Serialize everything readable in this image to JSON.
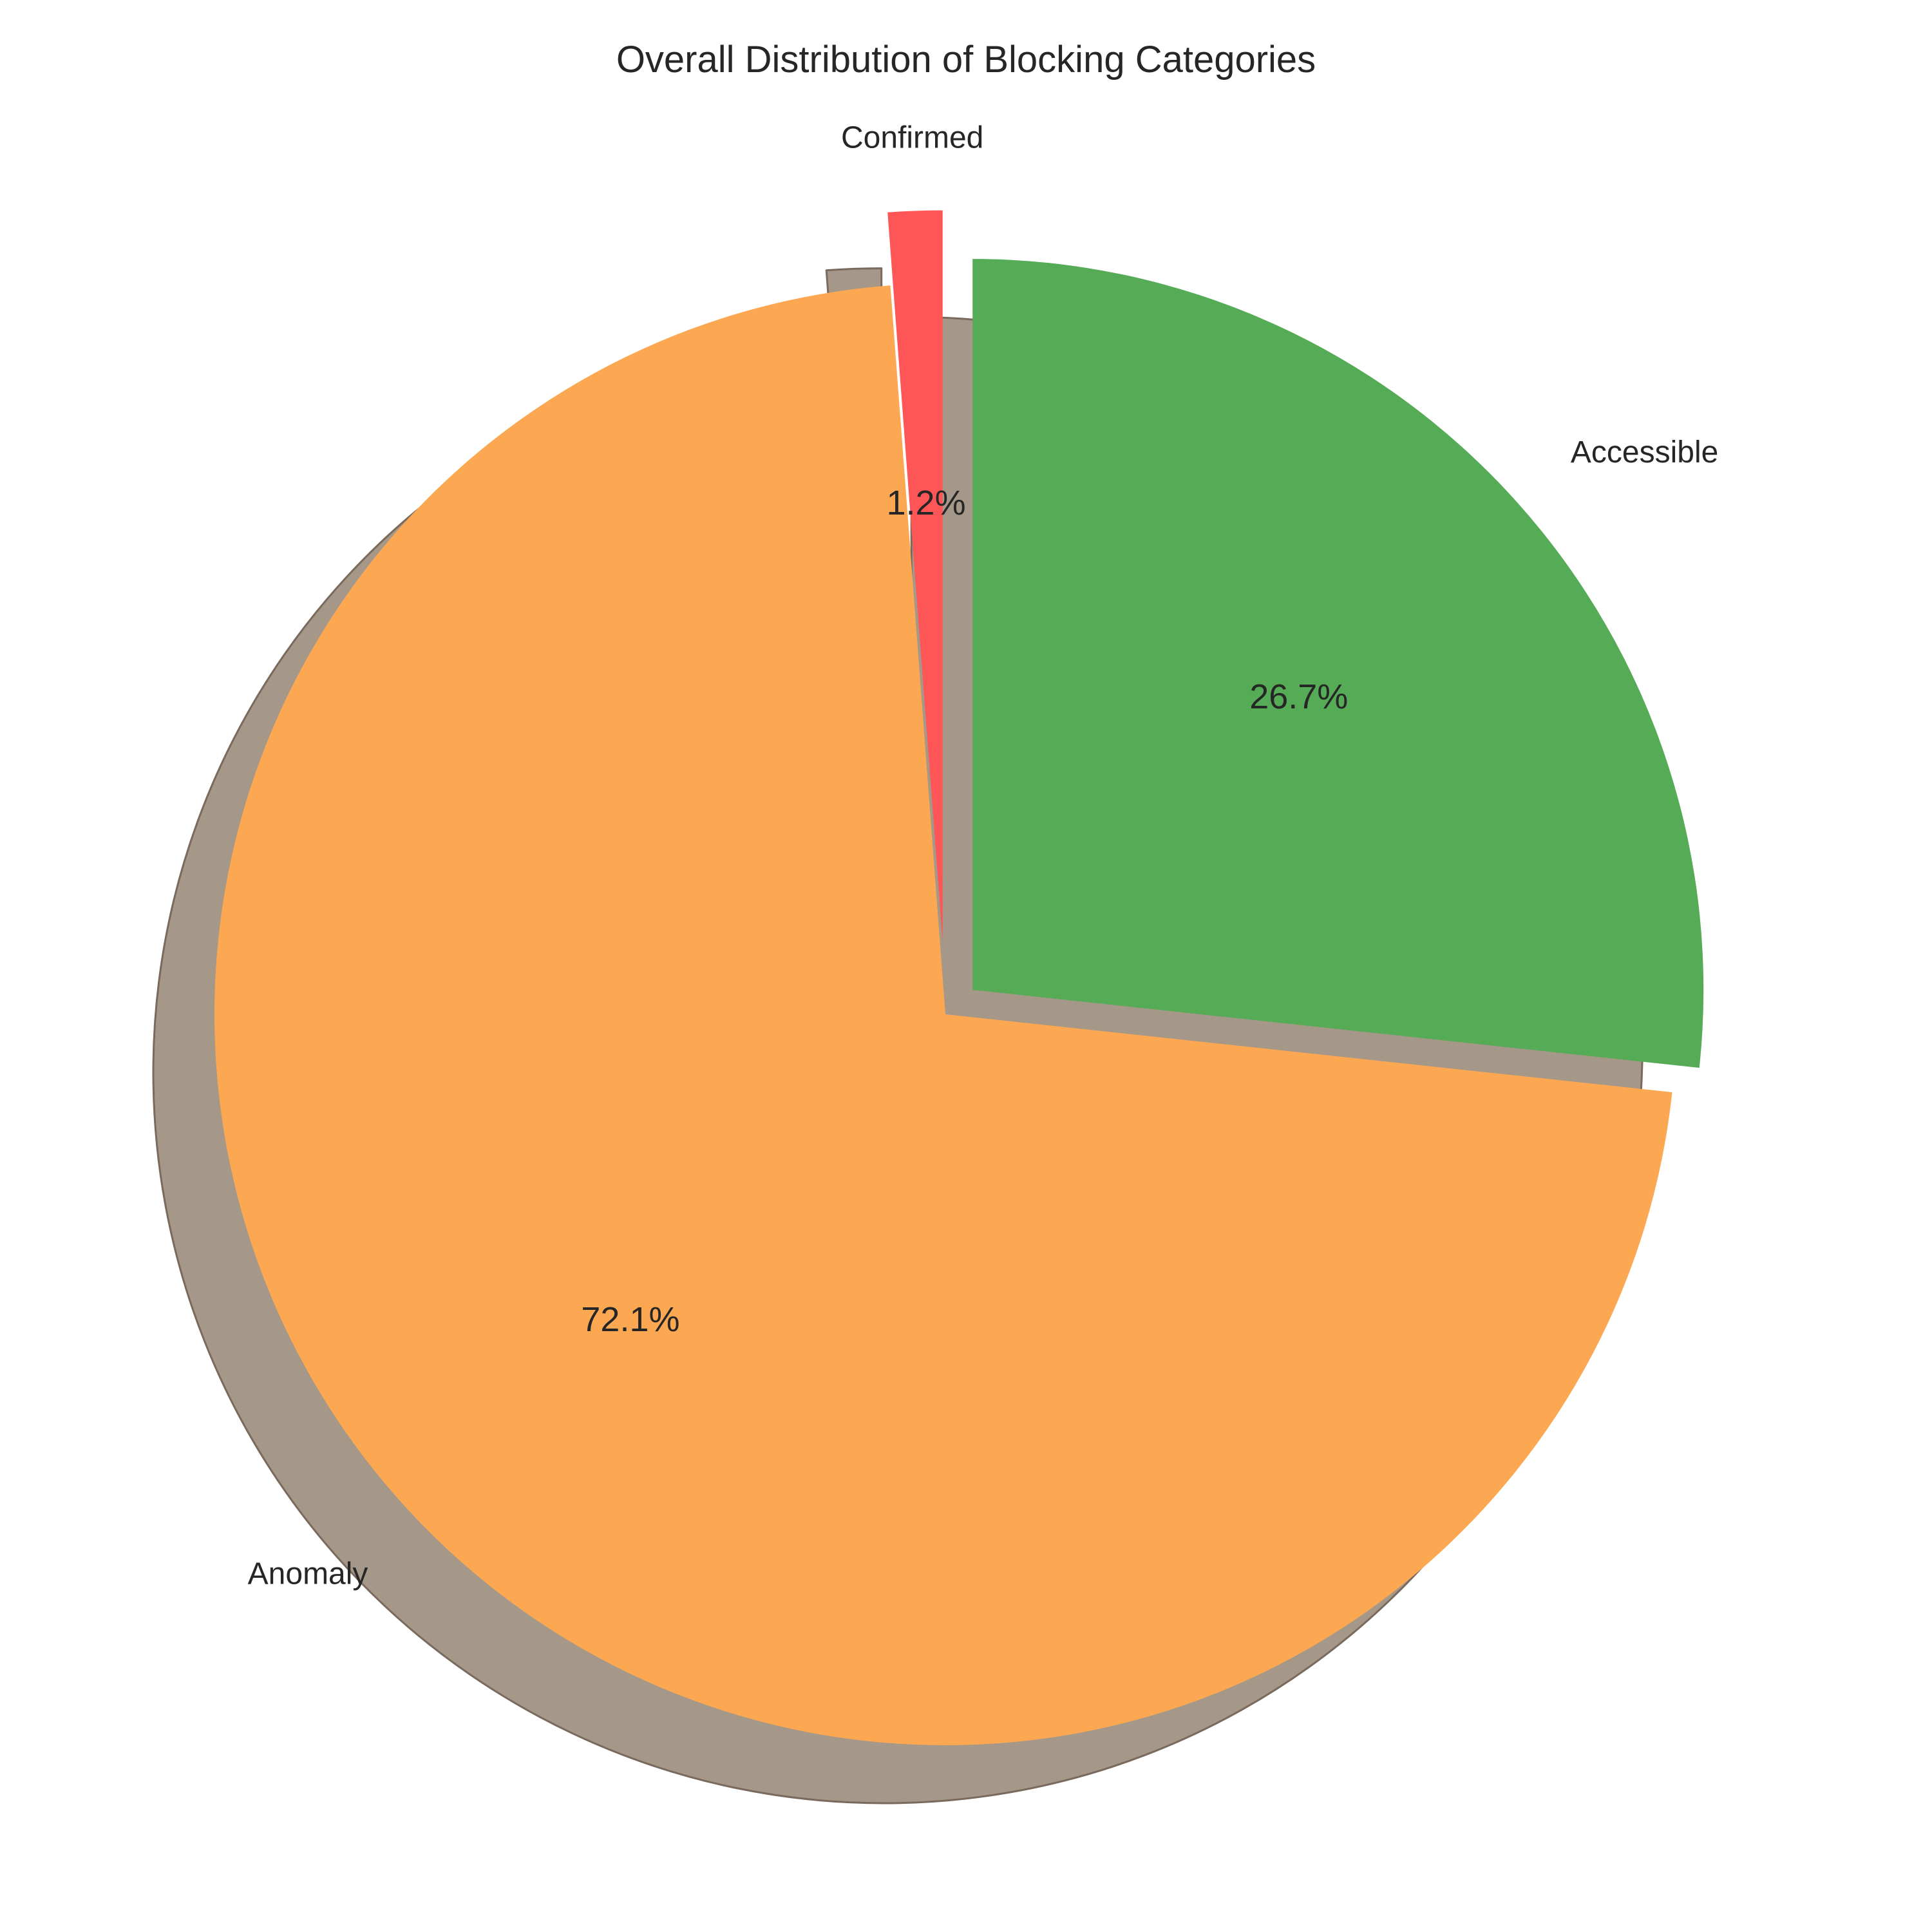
{
  "chart_data": {
    "type": "pie",
    "title": "Overall Distribution of Blocking Categories",
    "start_angle_deg": 90,
    "direction": "clockwise",
    "shadow": true,
    "slices": [
      {
        "name": "Accessible",
        "label": "Accessible",
        "value": 26.7,
        "pct_label": "26.7%",
        "color": "#56ab56",
        "explode": 0.05
      },
      {
        "name": "Anomaly",
        "label": "Anomaly",
        "value": 72.1,
        "pct_label": "72.1%",
        "color": "#fca852",
        "explode": 0.0
      },
      {
        "name": "Confirmed",
        "label": "Confirmed",
        "value": 1.2,
        "pct_label": "1.2%",
        "color": "#fe5656",
        "explode": 0.1
      }
    ]
  }
}
